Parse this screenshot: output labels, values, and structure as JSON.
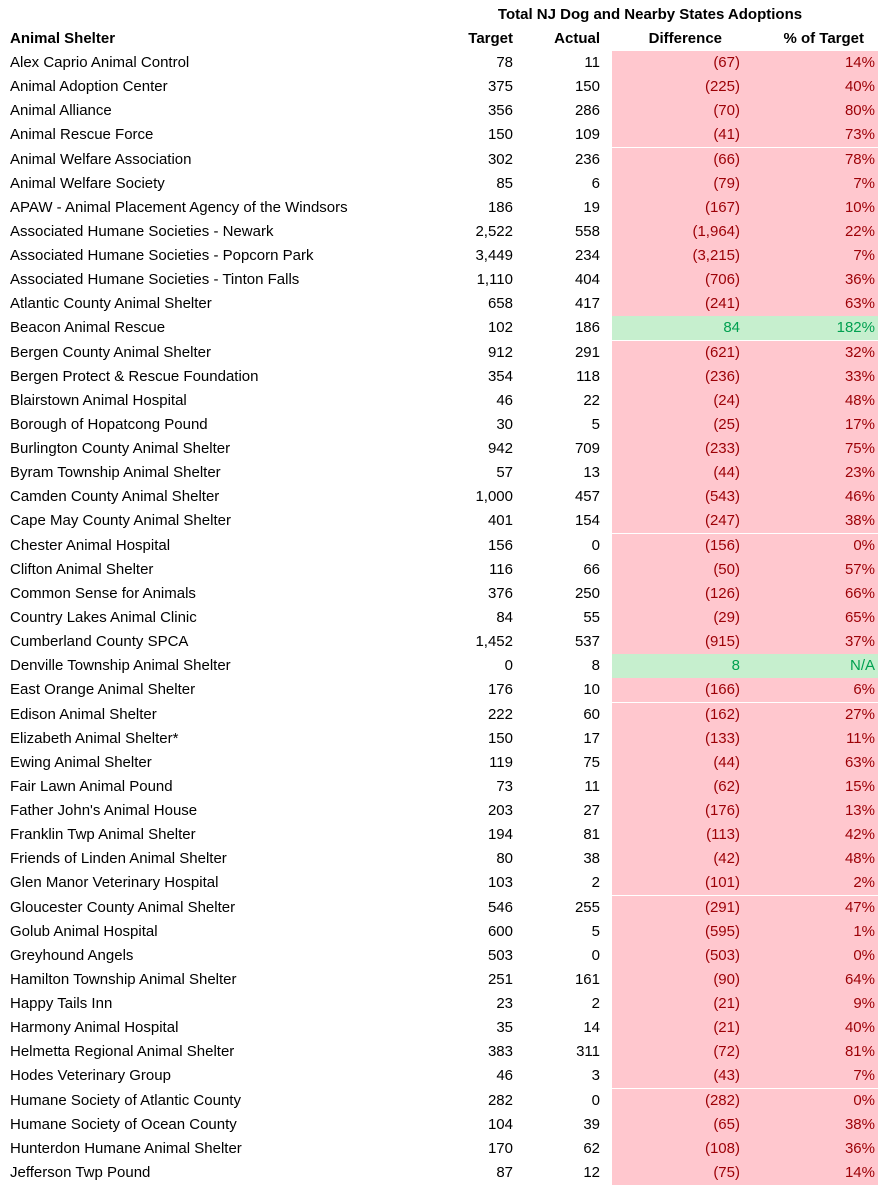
{
  "title": "Total NJ Dog and Nearby States Adoptions",
  "headers": {
    "name": "Animal Shelter",
    "target": "Target",
    "actual": "Actual",
    "difference": "Difference",
    "pct": "% of Target"
  },
  "colors": {
    "below_fill": "#FFC7CE",
    "below_text": "#9C0006",
    "above_fill": "#C6EFCE",
    "above_text": "#00A050"
  },
  "rows": [
    {
      "name": "Alex Caprio Animal Control",
      "target": "78",
      "actual": "11",
      "difference": "(67)",
      "pct": "14%",
      "status": "below"
    },
    {
      "name": "Animal Adoption Center",
      "target": "375",
      "actual": "150",
      "difference": "(225)",
      "pct": "40%",
      "status": "below"
    },
    {
      "name": "Animal Alliance",
      "target": "356",
      "actual": "286",
      "difference": "(70)",
      "pct": "80%",
      "status": "below"
    },
    {
      "name": "Animal Rescue Force",
      "target": "150",
      "actual": "109",
      "difference": "(41)",
      "pct": "73%",
      "status": "below"
    },
    {
      "name": "Animal Welfare Association",
      "target": "302",
      "actual": "236",
      "difference": "(66)",
      "pct": "78%",
      "status": "below"
    },
    {
      "name": "Animal Welfare Society",
      "target": "85",
      "actual": "6",
      "difference": "(79)",
      "pct": "7%",
      "status": "below"
    },
    {
      "name": "APAW - Animal Placement Agency of the Windsors",
      "target": "186",
      "actual": "19",
      "difference": "(167)",
      "pct": "10%",
      "status": "below"
    },
    {
      "name": "Associated Humane Societies - Newark",
      "target": "2,522",
      "actual": "558",
      "difference": "(1,964)",
      "pct": "22%",
      "status": "below"
    },
    {
      "name": "Associated Humane Societies - Popcorn Park",
      "target": "3,449",
      "actual": "234",
      "difference": "(3,215)",
      "pct": "7%",
      "status": "below"
    },
    {
      "name": "Associated Humane Societies - Tinton Falls",
      "target": "1,110",
      "actual": "404",
      "difference": "(706)",
      "pct": "36%",
      "status": "below"
    },
    {
      "name": "Atlantic County Animal Shelter",
      "target": "658",
      "actual": "417",
      "difference": "(241)",
      "pct": "63%",
      "status": "below"
    },
    {
      "name": "Beacon Animal Rescue",
      "target": "102",
      "actual": "186",
      "difference": "84",
      "pct": "182%",
      "status": "above"
    },
    {
      "name": "Bergen County Animal Shelter",
      "target": "912",
      "actual": "291",
      "difference": "(621)",
      "pct": "32%",
      "status": "below"
    },
    {
      "name": "Bergen Protect & Rescue Foundation",
      "target": "354",
      "actual": "118",
      "difference": "(236)",
      "pct": "33%",
      "status": "below"
    },
    {
      "name": "Blairstown Animal Hospital",
      "target": "46",
      "actual": "22",
      "difference": "(24)",
      "pct": "48%",
      "status": "below"
    },
    {
      "name": "Borough of Hopatcong Pound",
      "target": "30",
      "actual": "5",
      "difference": "(25)",
      "pct": "17%",
      "status": "below"
    },
    {
      "name": "Burlington County Animal Shelter",
      "target": "942",
      "actual": "709",
      "difference": "(233)",
      "pct": "75%",
      "status": "below"
    },
    {
      "name": "Byram Township Animal Shelter",
      "target": "57",
      "actual": "13",
      "difference": "(44)",
      "pct": "23%",
      "status": "below"
    },
    {
      "name": "Camden County Animal Shelter",
      "target": "1,000",
      "actual": "457",
      "difference": "(543)",
      "pct": "46%",
      "status": "below"
    },
    {
      "name": "Cape May County Animal Shelter",
      "target": "401",
      "actual": "154",
      "difference": "(247)",
      "pct": "38%",
      "status": "below"
    },
    {
      "name": "Chester Animal Hospital",
      "target": "156",
      "actual": "0",
      "difference": "(156)",
      "pct": "0%",
      "status": "below"
    },
    {
      "name": "Clifton Animal Shelter",
      "target": "116",
      "actual": "66",
      "difference": "(50)",
      "pct": "57%",
      "status": "below"
    },
    {
      "name": "Common Sense for Animals",
      "target": "376",
      "actual": "250",
      "difference": "(126)",
      "pct": "66%",
      "status": "below"
    },
    {
      "name": "Country Lakes Animal Clinic",
      "target": "84",
      "actual": "55",
      "difference": "(29)",
      "pct": "65%",
      "status": "below"
    },
    {
      "name": "Cumberland County SPCA",
      "target": "1,452",
      "actual": "537",
      "difference": "(915)",
      "pct": "37%",
      "status": "below"
    },
    {
      "name": "Denville Township Animal Shelter",
      "target": "0",
      "actual": "8",
      "difference": "8",
      "pct": "N/A",
      "status": "above"
    },
    {
      "name": "East Orange Animal Shelter",
      "target": "176",
      "actual": "10",
      "difference": "(166)",
      "pct": "6%",
      "status": "below"
    },
    {
      "name": "Edison Animal Shelter",
      "target": "222",
      "actual": "60",
      "difference": "(162)",
      "pct": "27%",
      "status": "below"
    },
    {
      "name": "Elizabeth Animal Shelter*",
      "target": "150",
      "actual": "17",
      "difference": "(133)",
      "pct": "11%",
      "status": "below"
    },
    {
      "name": "Ewing Animal Shelter",
      "target": "119",
      "actual": "75",
      "difference": "(44)",
      "pct": "63%",
      "status": "below"
    },
    {
      "name": "Fair Lawn Animal Pound",
      "target": "73",
      "actual": "11",
      "difference": "(62)",
      "pct": "15%",
      "status": "below"
    },
    {
      "name": "Father John's Animal House",
      "target": "203",
      "actual": "27",
      "difference": "(176)",
      "pct": "13%",
      "status": "below"
    },
    {
      "name": "Franklin Twp Animal Shelter",
      "target": "194",
      "actual": "81",
      "difference": "(113)",
      "pct": "42%",
      "status": "below"
    },
    {
      "name": "Friends of Linden Animal Shelter",
      "target": "80",
      "actual": "38",
      "difference": "(42)",
      "pct": "48%",
      "status": "below"
    },
    {
      "name": "Glen Manor Veterinary Hospital",
      "target": "103",
      "actual": "2",
      "difference": "(101)",
      "pct": "2%",
      "status": "below"
    },
    {
      "name": "Gloucester County Animal Shelter",
      "target": "546",
      "actual": "255",
      "difference": "(291)",
      "pct": "47%",
      "status": "below"
    },
    {
      "name": "Golub Animal Hospital",
      "target": "600",
      "actual": "5",
      "difference": "(595)",
      "pct": "1%",
      "status": "below"
    },
    {
      "name": "Greyhound Angels",
      "target": "503",
      "actual": "0",
      "difference": "(503)",
      "pct": "0%",
      "status": "below"
    },
    {
      "name": "Hamilton Township Animal Shelter",
      "target": "251",
      "actual": "161",
      "difference": "(90)",
      "pct": "64%",
      "status": "below"
    },
    {
      "name": "Happy Tails Inn",
      "target": "23",
      "actual": "2",
      "difference": "(21)",
      "pct": "9%",
      "status": "below"
    },
    {
      "name": "Harmony Animal Hospital",
      "target": "35",
      "actual": "14",
      "difference": "(21)",
      "pct": "40%",
      "status": "below"
    },
    {
      "name": "Helmetta Regional Animal Shelter",
      "target": "383",
      "actual": "311",
      "difference": "(72)",
      "pct": "81%",
      "status": "below"
    },
    {
      "name": "Hodes Veterinary Group",
      "target": "46",
      "actual": "3",
      "difference": "(43)",
      "pct": "7%",
      "status": "below"
    },
    {
      "name": "Humane Society of Atlantic County",
      "target": "282",
      "actual": "0",
      "difference": "(282)",
      "pct": "0%",
      "status": "below"
    },
    {
      "name": "Humane Society of Ocean County",
      "target": "104",
      "actual": "39",
      "difference": "(65)",
      "pct": "38%",
      "status": "below"
    },
    {
      "name": "Hunterdon Humane Animal Shelter",
      "target": "170",
      "actual": "62",
      "difference": "(108)",
      "pct": "36%",
      "status": "below"
    },
    {
      "name": "Jefferson Twp Pound",
      "target": "87",
      "actual": "12",
      "difference": "(75)",
      "pct": "14%",
      "status": "below"
    }
  ]
}
